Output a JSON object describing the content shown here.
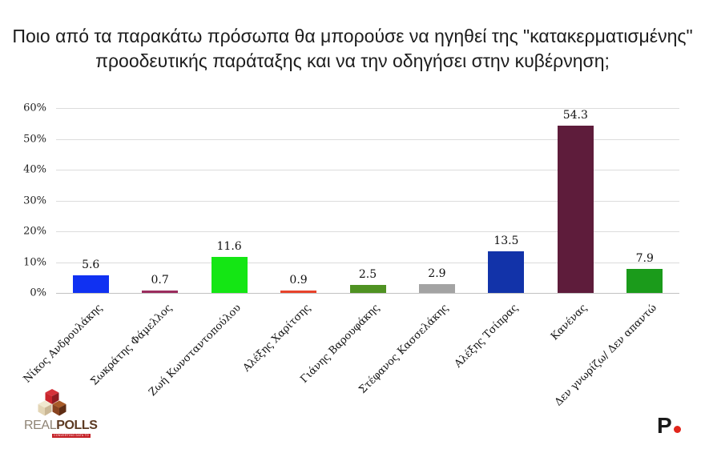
{
  "title": {
    "full": "Ποιο από τα παρακάτω πρόσωπα θα μπορούσε να ηγηθεί της \"κατακερματισμένης\" προοδευτικής παράταξης και να την οδηγήσει στην κυβέρνηση;",
    "line1": "Ποιο από τα παρακάτω πρόσωπα θα μπορούσε να ηγηθεί της \"κατακερματισμένης\"",
    "line2": "προοδευτικής παράταξης και να την οδηγήσει στην κυβέρνηση;"
  },
  "chart_data": {
    "type": "bar",
    "categories": [
      "Νίκος Ανδρουλάκης",
      "Σωκράτης Φάμελλος",
      "Ζωή Κωνσταντοπούλου",
      "Αλέξης Χαρίτσης",
      "Γιάνης Βαρουφάκης",
      "Στέφανος Κασσελάκης",
      "Αλέξης Τσίπρας",
      "Κανένας",
      "Δεν γνωρίζω/ Δεν απαντώ"
    ],
    "values": [
      5.6,
      0.7,
      11.6,
      0.9,
      2.5,
      2.9,
      13.5,
      54.3,
      7.9
    ],
    "value_labels": [
      "5.6",
      "0.7",
      "11.6",
      "0.9",
      "2.5",
      "2.9",
      "13.5",
      "54.3",
      "7.9"
    ],
    "bar_colors": [
      "#1031f2",
      "#9b2d5e",
      "#14e614",
      "#e8432b",
      "#4f9222",
      "#a3a3a3",
      "#1233a9",
      "#5e1c3b",
      "#1b9b1b"
    ],
    "yticks": [
      "0%",
      "10%",
      "20%",
      "30%",
      "40%",
      "50%",
      "60%"
    ],
    "ytick_values": [
      0,
      10,
      20,
      30,
      40,
      50,
      60
    ],
    "ylim": [
      0,
      60
    ],
    "grid": "horizontal",
    "legend": "none",
    "title": "",
    "xlabel": "",
    "ylabel": ""
  },
  "footer": {
    "realpolls": {
      "real": "REAL",
      "polls": "POLLS",
      "tagline": "CONVERTING DATA TO INSIGHT",
      "colors": {
        "real": "#8e8374",
        "polls": "#5c3a22",
        "tagline_bg": "#c52127"
      }
    },
    "publisher": {
      "letter": "P",
      "dot_color": "#e1251b"
    }
  }
}
